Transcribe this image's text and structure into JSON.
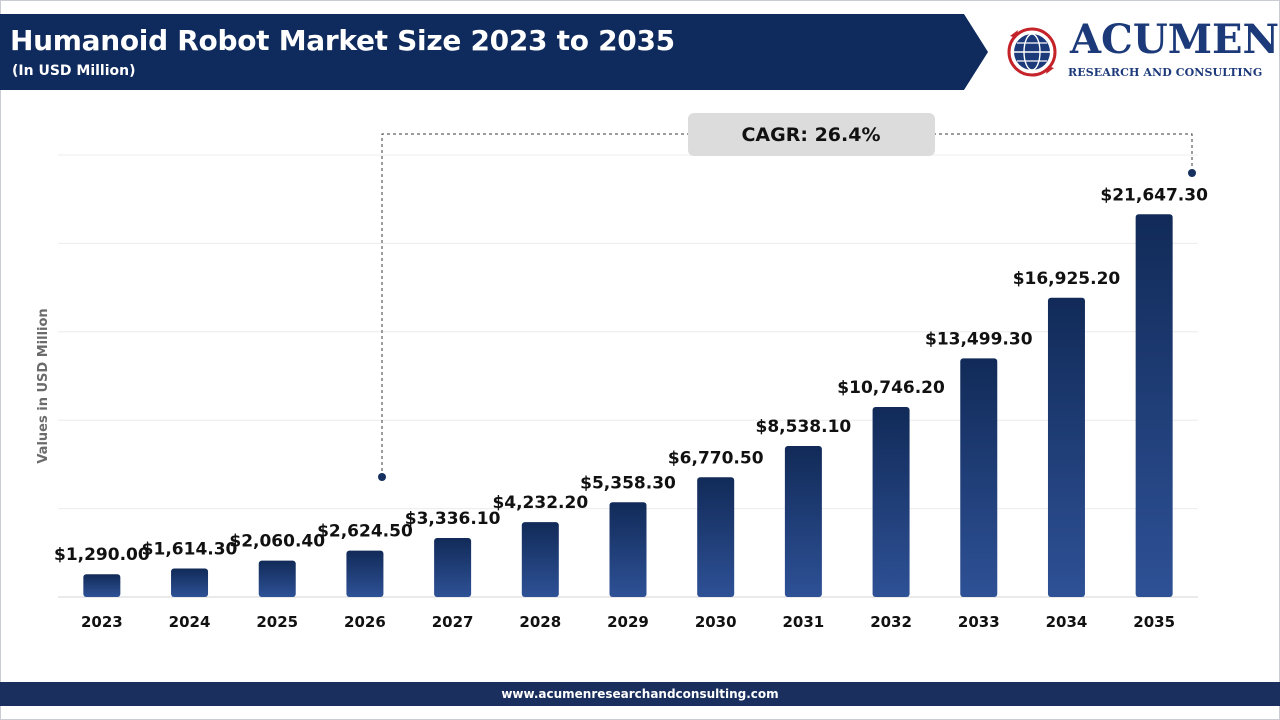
{
  "header": {
    "title": "Humanoid Robot Market Size 2023 to 2035",
    "subtitle": "(In USD Million)"
  },
  "logo": {
    "name": "ACUMEN",
    "tagline": "RESEARCH AND CONSULTING"
  },
  "annotation": {
    "cagr": "CAGR: 26.4%"
  },
  "footer": {
    "url": "www.acumenresearchandconsulting.com"
  },
  "colors": {
    "banner": "#0f2a5c",
    "bar_top": "#112a58",
    "bar_bottom": "#2e5196",
    "cagr_box": "#dcdcdc",
    "footer": "#1b2f5e"
  },
  "chart_data": {
    "type": "bar",
    "title": "Humanoid Robot Market Size 2023 to 2035",
    "subtitle": "(In USD Million)",
    "xlabel": "",
    "ylabel": "Values in USD Million",
    "categories": [
      "2023",
      "2024",
      "2025",
      "2026",
      "2027",
      "2028",
      "2029",
      "2030",
      "2031",
      "2032",
      "2033",
      "2034",
      "2035"
    ],
    "values": [
      1290.0,
      1614.3,
      2060.4,
      2624.5,
      3336.1,
      4232.2,
      5358.3,
      6770.5,
      8538.1,
      10746.2,
      13499.3,
      16925.2,
      21647.3
    ],
    "value_labels": [
      "$1,290.00",
      "$1,614.30",
      "$2,060.40",
      "$2,624.50",
      "$3,336.10",
      "$4,232.20",
      "$5,358.30",
      "$6,770.50",
      "$8,538.10",
      "$10,746.20",
      "$13,499.30",
      "$16,925.20",
      "$21,647.30"
    ],
    "ylim": [
      0,
      25000
    ],
    "grid": true,
    "annotation": "CAGR: 26.4%"
  }
}
